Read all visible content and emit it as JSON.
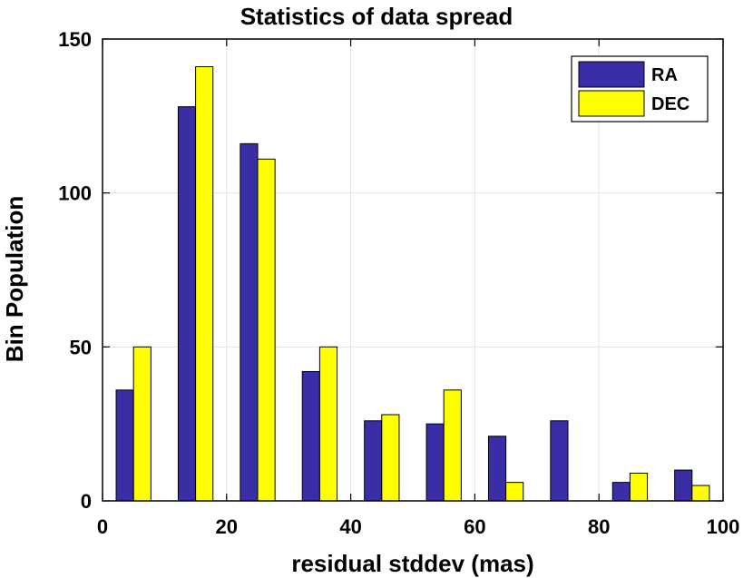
{
  "chart_data": {
    "type": "bar",
    "title": "Statistics of data spread",
    "xlabel": "residual stddev (mas)",
    "ylabel": "Bin Population",
    "xlim": [
      0,
      100
    ],
    "ylim": [
      0,
      150
    ],
    "xticks": [
      0,
      20,
      40,
      60,
      80,
      100
    ],
    "yticks": [
      0,
      50,
      100,
      150
    ],
    "grid": true,
    "legend_position": "top-right",
    "bin_centers": [
      5,
      15,
      25,
      35,
      45,
      55,
      65,
      75,
      85,
      95
    ],
    "series": [
      {
        "name": "RA",
        "color": "#3a2ea6",
        "values": [
          36,
          128,
          116,
          42,
          26,
          25,
          21,
          26,
          6,
          10
        ]
      },
      {
        "name": "DEC",
        "color": "#ffff00",
        "values": [
          50,
          141,
          111,
          50,
          28,
          36,
          6,
          0,
          9,
          5
        ]
      }
    ]
  }
}
